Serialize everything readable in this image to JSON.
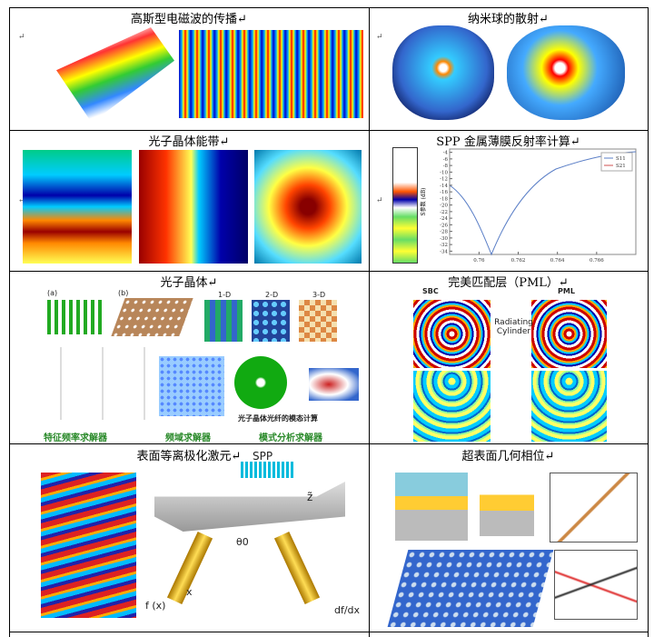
{
  "paragraph_mark": "↵",
  "cells": [
    {
      "caption": "高斯型电磁波的传播↵"
    },
    {
      "caption": "纳米球的散射↵"
    },
    {
      "caption": "光子晶体能带↵"
    },
    {
      "caption": "SPP 金属薄膜反射率计算↵"
    },
    {
      "caption": "光子晶体↵"
    },
    {
      "caption": "完美匹配层（PML）↵"
    },
    {
      "caption": "表面等离极化激元↵"
    },
    {
      "caption": "超表面几何相位↵"
    }
  ],
  "photonic_crystal": {
    "dims": [
      "1-D",
      "2-D",
      "3-D"
    ],
    "panels": [
      "(a)",
      "(b)"
    ],
    "solvers": [
      "特征频率求解器",
      "频域求解器",
      "模式分析求解器"
    ],
    "fiber_note": "光子晶体光纤的模态计算"
  },
  "pml": {
    "left": "SBC",
    "right": "PML",
    "label": "Radiating Cylinder"
  },
  "spp": {
    "label": "SPP",
    "fx": "f (x)",
    "x": "x",
    "dfdx": "df/dx",
    "theta": "θ0",
    "z": "z̃"
  },
  "s_param_chart": {
    "type": "line",
    "ylabel": "S参数 (dB)",
    "series": [
      {
        "name": "S11",
        "color": "#5b7fc7"
      },
      {
        "name": "S21",
        "color": "#d05050"
      }
    ],
    "xlim": [
      0.7585,
      0.768
    ],
    "xticks": [
      0.76,
      0.762,
      0.764,
      0.766
    ],
    "ylim": [
      -35,
      -3
    ],
    "yticks": [
      -4,
      -6,
      -8,
      -10,
      -12,
      -14,
      -16,
      -18,
      -20,
      -22,
      -24,
      -26,
      -28,
      -30,
      -32,
      -34
    ]
  }
}
